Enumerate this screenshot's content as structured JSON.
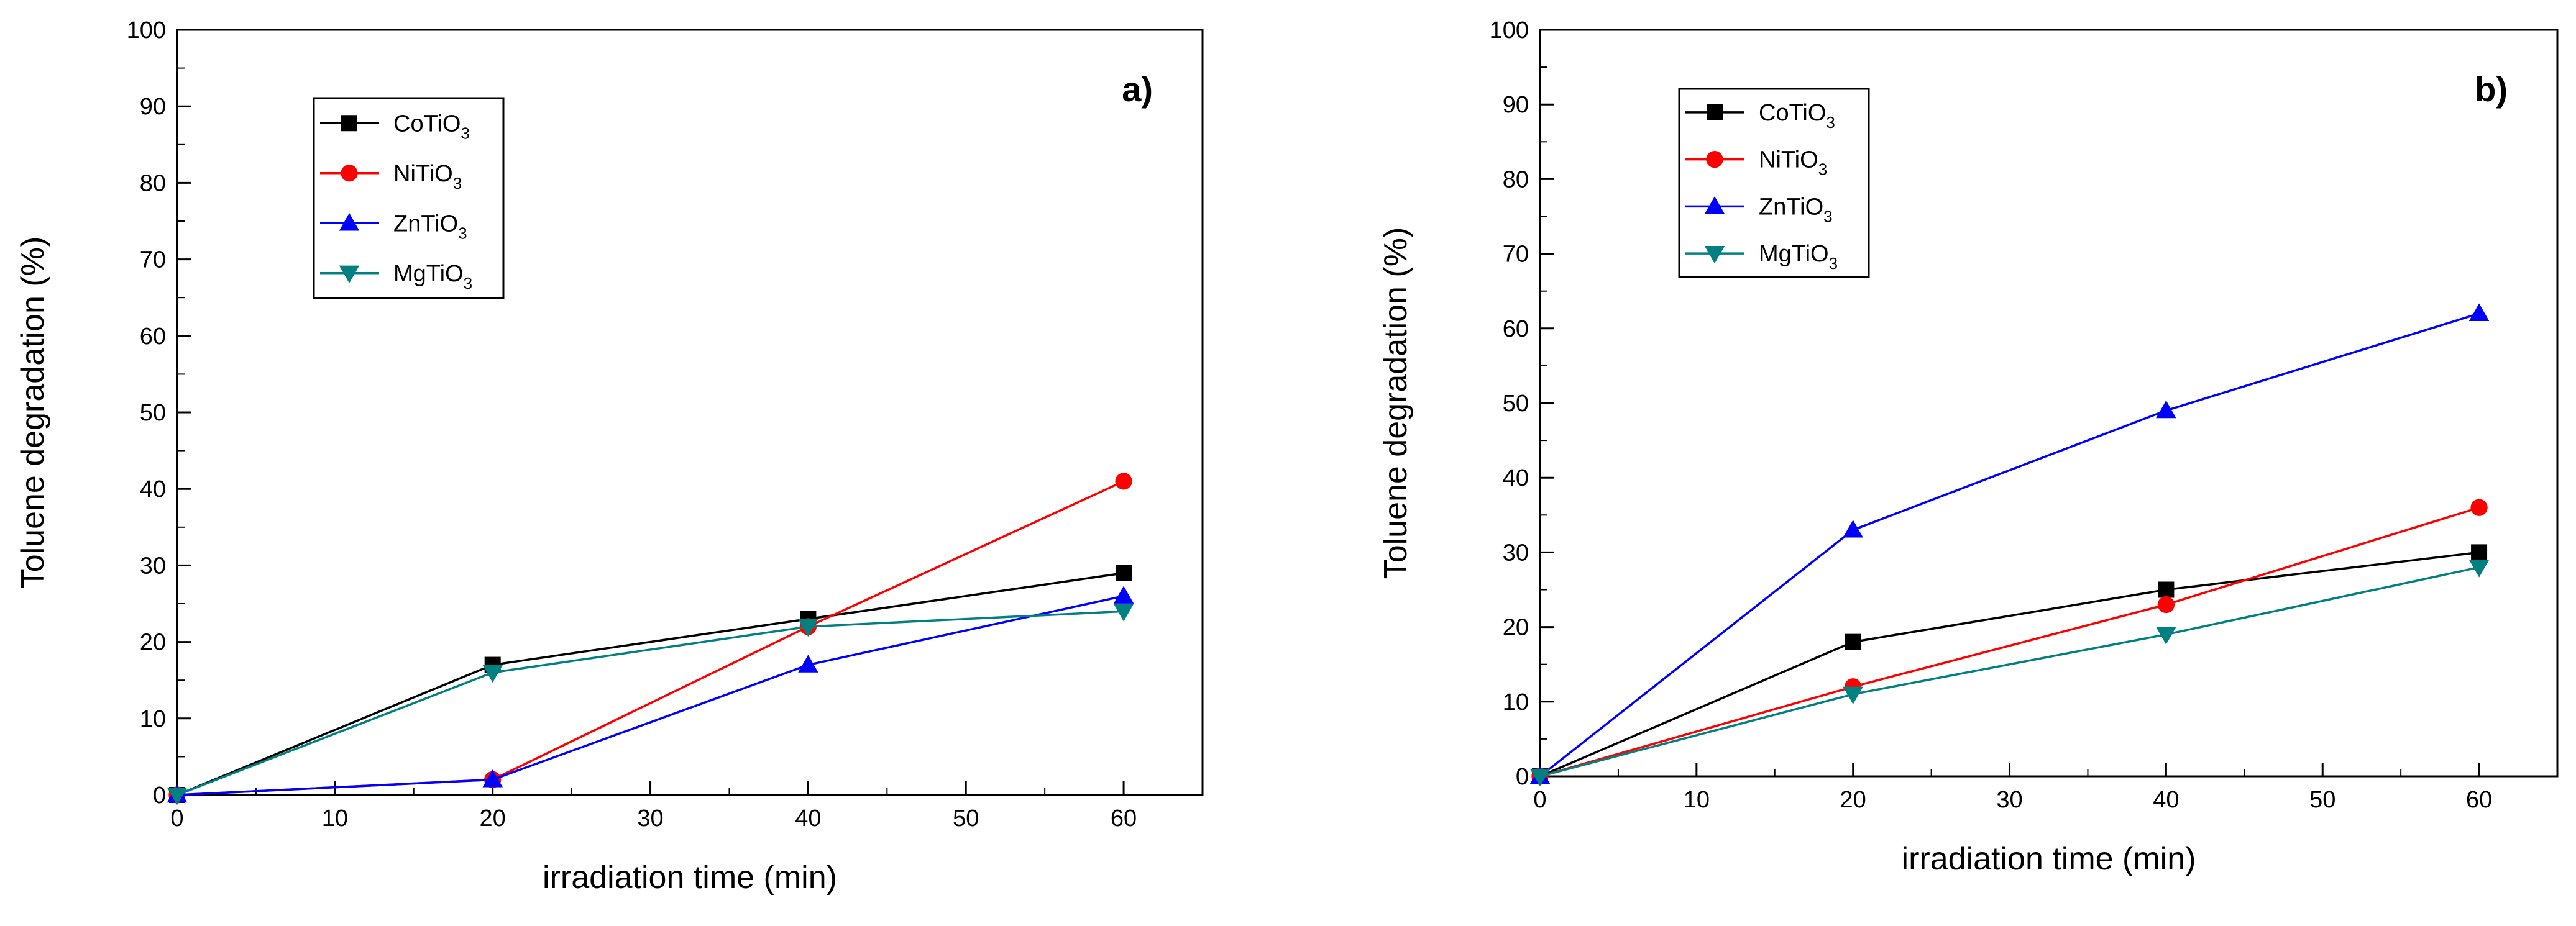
{
  "chart_data": [
    {
      "type": "line",
      "panel_label": "a)",
      "xlabel": "irradiation time (min)",
      "ylabel": "Toluene degradation (%)",
      "xlim": [
        0,
        65
      ],
      "ylim": [
        0,
        100
      ],
      "xticks": [
        0,
        10,
        20,
        30,
        40,
        50,
        60
      ],
      "yticks": [
        0,
        10,
        20,
        30,
        40,
        50,
        60,
        70,
        80,
        90,
        100
      ],
      "legend_position": "top-left",
      "x": [
        0,
        20,
        40,
        60
      ],
      "series": [
        {
          "name": "CoTiO",
          "subscript": "3",
          "marker": "square",
          "color": "#000000",
          "values": [
            0,
            17,
            23,
            29
          ]
        },
        {
          "name": "NiTiO",
          "subscript": "3",
          "marker": "circle",
          "color": "#ff0000",
          "values": [
            0,
            2,
            22,
            41
          ]
        },
        {
          "name": "ZnTiO",
          "subscript": "3",
          "marker": "triangle-up",
          "color": "#0000ff",
          "values": [
            0,
            2,
            17,
            26
          ]
        },
        {
          "name": "MgTiO",
          "subscript": "3",
          "marker": "triangle-down",
          "color": "#008080",
          "values": [
            0,
            16,
            22,
            24
          ]
        }
      ]
    },
    {
      "type": "line",
      "panel_label": "b)",
      "xlabel": "irradiation time (min)",
      "ylabel": "Toluene degradation (%)",
      "xlim": [
        0,
        65
      ],
      "ylim": [
        0,
        100
      ],
      "xticks": [
        0,
        10,
        20,
        30,
        40,
        50,
        60
      ],
      "yticks": [
        0,
        10,
        20,
        30,
        40,
        50,
        60,
        70,
        80,
        90,
        100
      ],
      "legend_position": "top-left",
      "x": [
        0,
        20,
        40,
        60
      ],
      "series": [
        {
          "name": "CoTiO",
          "subscript": "3",
          "marker": "square",
          "color": "#000000",
          "values": [
            0,
            18,
            25,
            30
          ]
        },
        {
          "name": "NiTiO",
          "subscript": "3",
          "marker": "circle",
          "color": "#ff0000",
          "values": [
            0,
            12,
            23,
            36
          ]
        },
        {
          "name": "ZnTiO",
          "subscript": "3",
          "marker": "triangle-up",
          "color": "#0000ff",
          "values": [
            0,
            33,
            49,
            62
          ]
        },
        {
          "name": "MgTiO",
          "subscript": "3",
          "marker": "triangle-down",
          "color": "#008080",
          "values": [
            0,
            11,
            19,
            28
          ]
        }
      ]
    }
  ]
}
